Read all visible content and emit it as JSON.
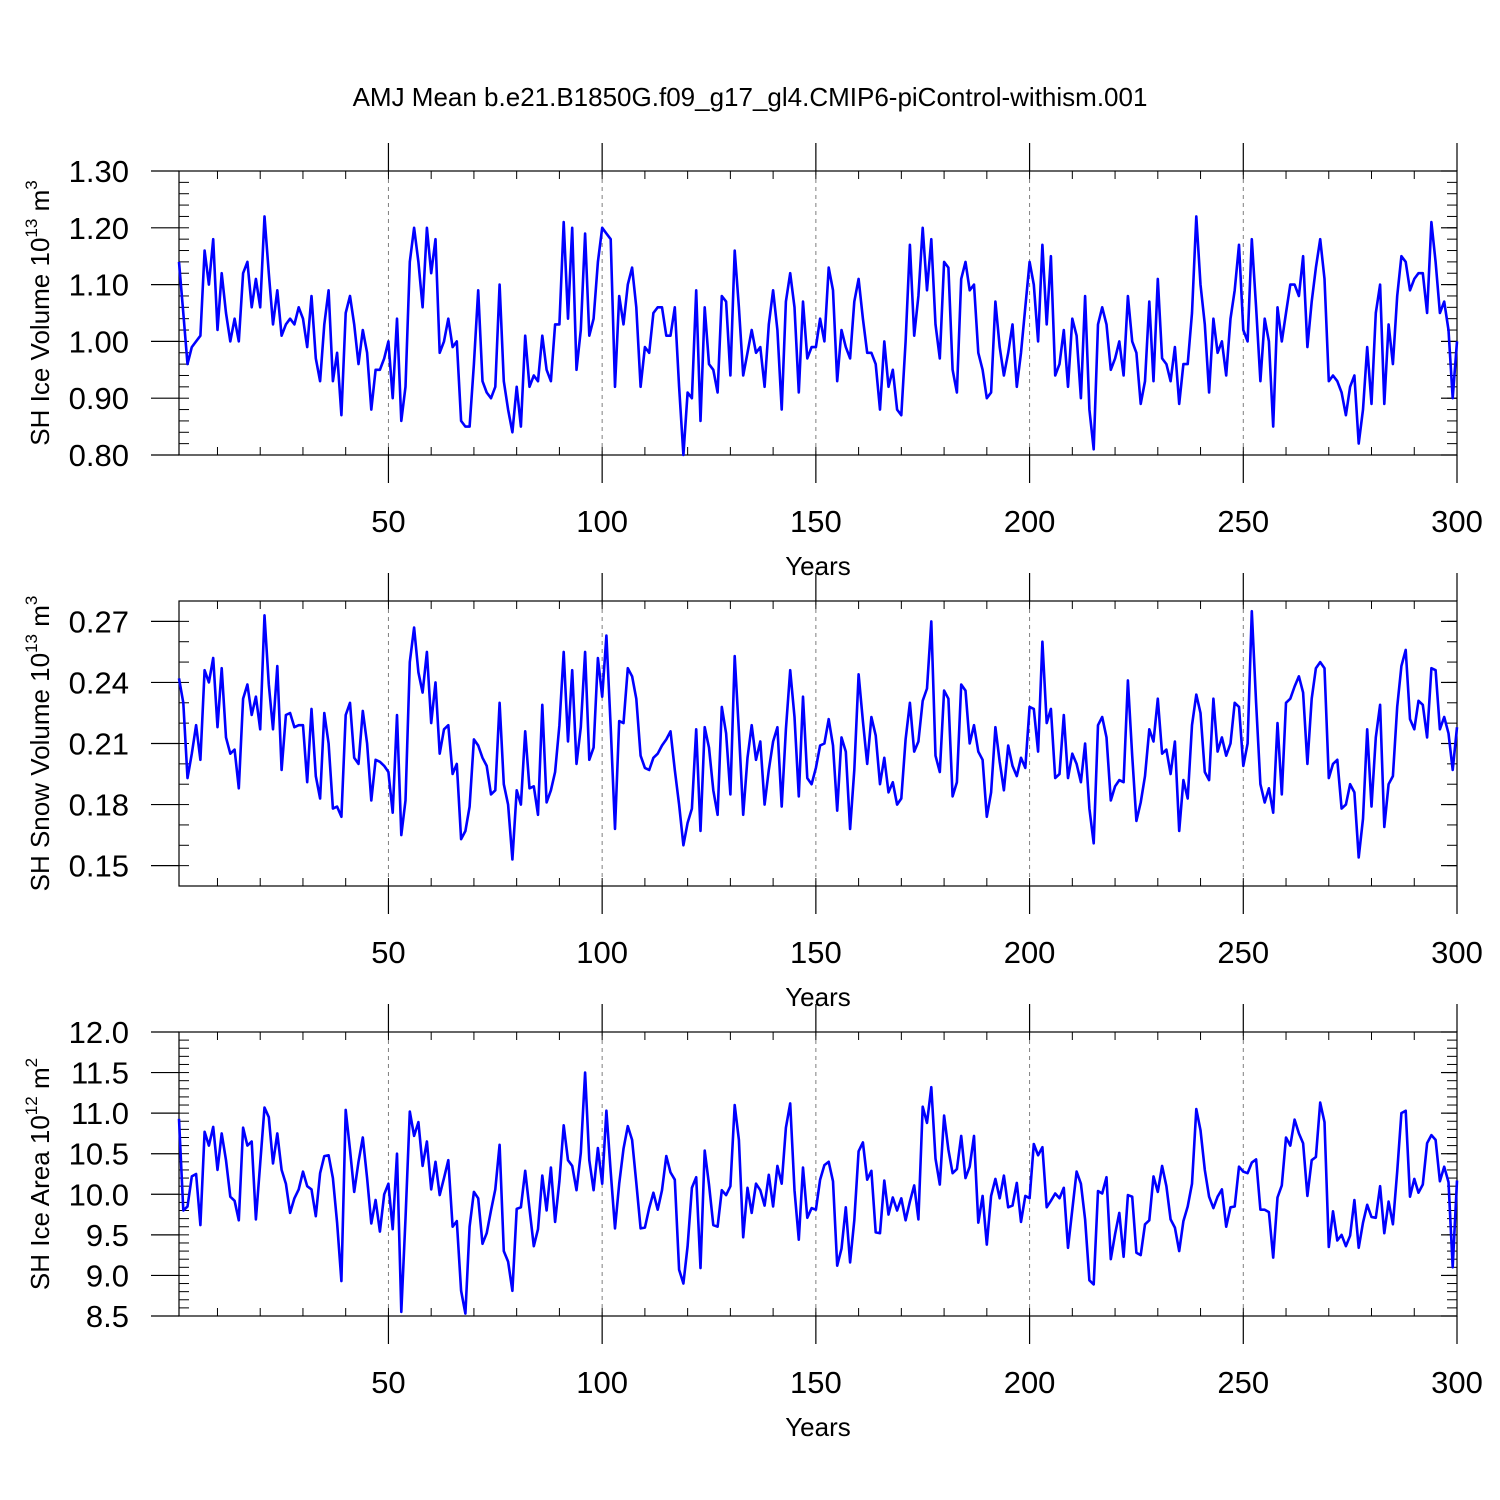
{
  "title": "AMJ Mean b.e21.B1850G.f09_g17_gl4.CMIP6-piControl-withism.001",
  "colors": {
    "series": "#0000ff",
    "axis": "#000000",
    "grid": "#7f7f7f"
  },
  "chart_data": [
    {
      "type": "line",
      "xlabel": "Years",
      "ylabel_main": "SH Ice Volume 10",
      "ylabel_sup": "13",
      "ylabel_unit": " m",
      "ylabel_unit_sup": "3",
      "xlim": [
        1,
        300
      ],
      "ylim": [
        0.8,
        1.3
      ],
      "xticks": [
        50,
        100,
        150,
        200,
        250,
        300
      ],
      "yticks": [
        "0.80",
        "0.90",
        "1.00",
        "1.10",
        "1.20",
        "1.30"
      ],
      "ytick_values": [
        0.8,
        0.9,
        1.0,
        1.1,
        1.2,
        1.3
      ],
      "yminor_step": 0.02,
      "grid": "vertical dashed at major x ticks",
      "series": [
        {
          "x_start": 1,
          "x_step": 1,
          "values": [
            1.14,
            1.05,
            0.96,
            0.99,
            1.0,
            1.01,
            1.16,
            1.1,
            1.18,
            1.02,
            1.12,
            1.05,
            1.0,
            1.04,
            1.0,
            1.12,
            1.14,
            1.06,
            1.11,
            1.06,
            1.22,
            1.12,
            1.03,
            1.09,
            1.01,
            1.03,
            1.04,
            1.03,
            1.06,
            1.04,
            0.99,
            1.08,
            0.97,
            0.93,
            1.03,
            1.09,
            0.93,
            0.98,
            0.87,
            1.05,
            1.08,
            1.03,
            0.96,
            1.02,
            0.98,
            0.88,
            0.95,
            0.95,
            0.97,
            1.0,
            0.9,
            1.04,
            0.86,
            0.92,
            1.14,
            1.2,
            1.14,
            1.06,
            1.2,
            1.12,
            1.18,
            0.98,
            1.0,
            1.04,
            0.99,
            1.0,
            0.86,
            0.85,
            0.85,
            0.96,
            1.09,
            0.93,
            0.91,
            0.9,
            0.92,
            1.1,
            0.93,
            0.88,
            0.84,
            0.92,
            0.85,
            1.01,
            0.92,
            0.94,
            0.93,
            1.01,
            0.95,
            0.93,
            1.03,
            1.03,
            1.21,
            1.04,
            1.2,
            0.95,
            1.02,
            1.19,
            1.01,
            1.04,
            1.14,
            1.2,
            1.19,
            1.18,
            0.92,
            1.08,
            1.03,
            1.1,
            1.13,
            1.06,
            0.92,
            0.99,
            0.98,
            1.05,
            1.06,
            1.06,
            1.01,
            1.01,
            1.06,
            0.92,
            0.8,
            0.91,
            0.9,
            1.09,
            0.86,
            1.06,
            0.96,
            0.95,
            0.91,
            1.08,
            1.07,
            0.94,
            1.16,
            1.06,
            0.94,
            0.98,
            1.02,
            0.98,
            0.99,
            0.92,
            1.03,
            1.09,
            1.02,
            0.88,
            1.07,
            1.12,
            1.06,
            0.91,
            1.07,
            0.97,
            0.99,
            0.99,
            1.04,
            1.0,
            1.13,
            1.09,
            0.93,
            1.02,
            0.99,
            0.97,
            1.07,
            1.11,
            1.04,
            0.98,
            0.98,
            0.96,
            0.88,
            1.0,
            0.92,
            0.95,
            0.88,
            0.87,
            1.0,
            1.17,
            1.01,
            1.08,
            1.2,
            1.09,
            1.18,
            1.03,
            0.97,
            1.14,
            1.13,
            0.95,
            0.91,
            1.11,
            1.14,
            1.09,
            1.1,
            0.98,
            0.95,
            0.9,
            0.91,
            1.07,
            0.99,
            0.94,
            0.98,
            1.03,
            0.92,
            0.98,
            1.06,
            1.14,
            1.1,
            1.0,
            1.17,
            1.03,
            1.15,
            0.94,
            0.96,
            1.02,
            0.92,
            1.04,
            1.01,
            0.9,
            1.08,
            0.88,
            0.81,
            1.03,
            1.06,
            1.03,
            0.95,
            0.97,
            1.0,
            0.94,
            1.08,
            1.0,
            0.98,
            0.89,
            0.93,
            1.07,
            0.93,
            1.11,
            0.97,
            0.96,
            0.93,
            0.99,
            0.89,
            0.96,
            0.96,
            1.05,
            1.22,
            1.1,
            1.03,
            0.91,
            1.04,
            0.98,
            1.0,
            0.94,
            1.04,
            1.09,
            1.17,
            1.02,
            1.0,
            1.18,
            1.06,
            0.93,
            1.04,
            1.0,
            0.85,
            1.06,
            1.0,
            1.05,
            1.1,
            1.1,
            1.08,
            1.15,
            0.99,
            1.07,
            1.13,
            1.18,
            1.11,
            0.93,
            0.94,
            0.93,
            0.91,
            0.87,
            0.92,
            0.94,
            0.82,
            0.88,
            0.99,
            0.89,
            1.05,
            1.1,
            0.89,
            1.03,
            0.96,
            1.08,
            1.15,
            1.14,
            1.09,
            1.11,
            1.12,
            1.12,
            1.05,
            1.21,
            1.14,
            1.05,
            1.07,
            1.02,
            0.9,
            1.0
          ]
        }
      ]
    },
    {
      "type": "line",
      "xlabel": "Years",
      "ylabel_main": "SH Snow Volume 10",
      "ylabel_sup": "13",
      "ylabel_unit": " m",
      "ylabel_unit_sup": "3",
      "xlim": [
        1,
        300
      ],
      "ylim": [
        0.14,
        0.28
      ],
      "xticks": [
        50,
        100,
        150,
        200,
        250,
        300
      ],
      "yticks": [
        "0.15",
        "0.18",
        "0.21",
        "0.24",
        "0.27"
      ],
      "ytick_values": [
        0.15,
        0.18,
        0.21,
        0.24,
        0.27
      ],
      "yminor_step": 0.01,
      "grid": "vertical dashed at major x ticks",
      "series": [
        {
          "x_start": 1,
          "x_step": 1,
          "values": [
            0.242,
            0.23,
            0.193,
            0.205,
            0.219,
            0.202,
            0.246,
            0.24,
            0.252,
            0.218,
            0.247,
            0.213,
            0.205,
            0.207,
            0.188,
            0.232,
            0.239,
            0.224,
            0.233,
            0.217,
            0.273,
            0.239,
            0.217,
            0.248,
            0.197,
            0.224,
            0.225,
            0.218,
            0.219,
            0.219,
            0.191,
            0.227,
            0.194,
            0.183,
            0.225,
            0.21,
            0.178,
            0.179,
            0.174,
            0.224,
            0.23,
            0.203,
            0.2,
            0.226,
            0.21,
            0.182,
            0.202,
            0.201,
            0.199,
            0.196,
            0.176,
            0.224,
            0.165,
            0.182,
            0.25,
            0.267,
            0.245,
            0.235,
            0.255,
            0.22,
            0.24,
            0.205,
            0.217,
            0.219,
            0.195,
            0.2,
            0.163,
            0.167,
            0.179,
            0.212,
            0.209,
            0.203,
            0.199,
            0.185,
            0.187,
            0.23,
            0.19,
            0.18,
            0.153,
            0.187,
            0.18,
            0.216,
            0.188,
            0.189,
            0.175,
            0.229,
            0.181,
            0.187,
            0.196,
            0.219,
            0.255,
            0.211,
            0.246,
            0.2,
            0.218,
            0.255,
            0.202,
            0.208,
            0.252,
            0.233,
            0.263,
            0.218,
            0.168,
            0.221,
            0.22,
            0.247,
            0.243,
            0.232,
            0.204,
            0.198,
            0.197,
            0.203,
            0.205,
            0.209,
            0.212,
            0.216,
            0.197,
            0.18,
            0.16,
            0.171,
            0.178,
            0.217,
            0.167,
            0.218,
            0.208,
            0.187,
            0.175,
            0.228,
            0.215,
            0.185,
            0.253,
            0.216,
            0.175,
            0.203,
            0.219,
            0.202,
            0.211,
            0.18,
            0.197,
            0.211,
            0.218,
            0.179,
            0.217,
            0.246,
            0.223,
            0.184,
            0.233,
            0.193,
            0.19,
            0.198,
            0.209,
            0.21,
            0.222,
            0.209,
            0.177,
            0.213,
            0.206,
            0.168,
            0.197,
            0.244,
            0.221,
            0.2,
            0.223,
            0.214,
            0.19,
            0.203,
            0.186,
            0.191,
            0.18,
            0.183,
            0.212,
            0.23,
            0.206,
            0.211,
            0.231,
            0.237,
            0.27,
            0.204,
            0.196,
            0.236,
            0.232,
            0.184,
            0.191,
            0.239,
            0.236,
            0.21,
            0.219,
            0.206,
            0.202,
            0.174,
            0.186,
            0.218,
            0.201,
            0.187,
            0.209,
            0.199,
            0.194,
            0.203,
            0.198,
            0.228,
            0.227,
            0.206,
            0.26,
            0.22,
            0.227,
            0.193,
            0.195,
            0.224,
            0.193,
            0.205,
            0.2,
            0.191,
            0.21,
            0.178,
            0.161,
            0.219,
            0.223,
            0.213,
            0.182,
            0.189,
            0.192,
            0.191,
            0.241,
            0.204,
            0.172,
            0.181,
            0.194,
            0.217,
            0.211,
            0.232,
            0.205,
            0.207,
            0.195,
            0.211,
            0.167,
            0.192,
            0.183,
            0.219,
            0.234,
            0.225,
            0.196,
            0.192,
            0.232,
            0.206,
            0.213,
            0.204,
            0.21,
            0.23,
            0.228,
            0.199,
            0.21,
            0.275,
            0.23,
            0.19,
            0.181,
            0.188,
            0.176,
            0.22,
            0.185,
            0.23,
            0.232,
            0.238,
            0.243,
            0.235,
            0.2,
            0.232,
            0.247,
            0.25,
            0.247,
            0.193,
            0.2,
            0.202,
            0.178,
            0.18,
            0.19,
            0.186,
            0.154,
            0.173,
            0.217,
            0.179,
            0.213,
            0.229,
            0.169,
            0.19,
            0.194,
            0.228,
            0.248,
            0.256,
            0.222,
            0.217,
            0.231,
            0.229,
            0.213,
            0.247,
            0.246,
            0.217,
            0.223,
            0.215,
            0.197,
            0.218
          ]
        }
      ]
    },
    {
      "type": "line",
      "xlabel": "Years",
      "ylabel_main": "SH Ice Area 10",
      "ylabel_sup": "12",
      "ylabel_unit": " m",
      "ylabel_unit_sup": "2",
      "xlim": [
        1,
        300
      ],
      "ylim": [
        8.5,
        12.0
      ],
      "xticks": [
        50,
        100,
        150,
        200,
        250,
        300
      ],
      "yticks": [
        "8.5",
        "9.0",
        "9.5",
        "10.0",
        "10.5",
        "11.0",
        "11.5",
        "12.0"
      ],
      "ytick_values": [
        8.5,
        9.0,
        9.5,
        10.0,
        10.5,
        11.0,
        11.5,
        12.0
      ],
      "yminor_step": 0.1,
      "grid": "vertical dashed at major x ticks",
      "series": [
        {
          "x_start": 1,
          "x_step": 1,
          "values": [
            10.93,
            9.8,
            9.85,
            10.22,
            10.25,
            9.62,
            10.77,
            10.6,
            10.83,
            10.3,
            10.75,
            10.42,
            9.97,
            9.92,
            9.68,
            10.82,
            10.6,
            10.65,
            9.69,
            10.38,
            11.07,
            10.95,
            10.38,
            10.75,
            10.3,
            10.13,
            9.77,
            9.95,
            10.06,
            10.28,
            10.1,
            10.06,
            9.73,
            10.26,
            10.47,
            10.48,
            10.2,
            9.65,
            8.93,
            11.04,
            10.55,
            10.03,
            10.4,
            10.7,
            10.2,
            9.64,
            9.93,
            9.54,
            10.0,
            10.13,
            9.57,
            10.5,
            8.55,
            9.7,
            11.02,
            10.72,
            10.89,
            10.35,
            10.65,
            10.06,
            10.4,
            9.99,
            10.2,
            10.42,
            9.6,
            9.67,
            8.81,
            8.53,
            9.6,
            10.03,
            9.95,
            9.39,
            9.52,
            9.8,
            10.06,
            10.61,
            9.3,
            9.17,
            8.81,
            9.82,
            9.84,
            10.29,
            9.82,
            9.36,
            9.57,
            10.23,
            9.8,
            10.33,
            9.66,
            10.16,
            10.85,
            10.42,
            10.35,
            10.05,
            10.51,
            11.5,
            10.42,
            10.05,
            10.57,
            10.13,
            11.03,
            10.28,
            9.58,
            10.13,
            10.56,
            10.84,
            10.67,
            10.14,
            9.58,
            9.59,
            9.83,
            10.02,
            9.81,
            10.05,
            10.47,
            10.27,
            10.18,
            9.07,
            8.9,
            9.36,
            10.08,
            10.21,
            9.09,
            10.54,
            10.12,
            9.62,
            9.6,
            10.05,
            9.99,
            10.1,
            11.1,
            10.67,
            9.47,
            10.08,
            9.77,
            10.13,
            10.05,
            9.86,
            10.24,
            9.85,
            10.35,
            10.13,
            10.82,
            11.12,
            10.05,
            9.44,
            10.33,
            9.71,
            9.83,
            9.81,
            10.18,
            10.36,
            10.4,
            10.16,
            9.12,
            9.33,
            9.84,
            9.16,
            9.68,
            10.53,
            10.64,
            10.18,
            10.29,
            9.53,
            9.52,
            10.17,
            9.75,
            9.96,
            9.8,
            9.95,
            9.68,
            9.91,
            10.11,
            9.69,
            11.08,
            10.88,
            11.32,
            10.44,
            10.12,
            10.97,
            10.55,
            10.26,
            10.31,
            10.72,
            10.2,
            10.34,
            10.72,
            9.65,
            9.98,
            9.38,
            9.98,
            10.19,
            9.95,
            10.23,
            9.84,
            9.86,
            10.14,
            9.66,
            9.98,
            9.95,
            10.62,
            10.48,
            10.58,
            9.84,
            9.92,
            10.01,
            9.95,
            10.08,
            9.34,
            9.81,
            10.28,
            10.13,
            9.69,
            8.94,
            8.89,
            10.04,
            10.01,
            10.21,
            9.2,
            9.51,
            9.77,
            9.23,
            9.99,
            9.97,
            9.28,
            9.25,
            9.63,
            9.68,
            10.22,
            10.03,
            10.35,
            10.1,
            9.69,
            9.59,
            9.3,
            9.67,
            9.85,
            10.13,
            11.05,
            10.79,
            10.3,
            9.97,
            9.83,
            9.97,
            10.06,
            9.6,
            9.84,
            9.85,
            10.34,
            10.28,
            10.26,
            10.39,
            10.43,
            9.81,
            9.81,
            9.78,
            9.22,
            9.96,
            10.11,
            10.7,
            10.6,
            10.92,
            10.75,
            10.63,
            9.98,
            10.42,
            10.46,
            11.13,
            10.89,
            9.35,
            9.79,
            9.43,
            9.5,
            9.36,
            9.49,
            9.93,
            9.34,
            9.65,
            9.87,
            9.72,
            9.71,
            10.1,
            9.52,
            9.91,
            9.63,
            10.28,
            11.0,
            11.03,
            9.97,
            10.19,
            10.02,
            10.12,
            10.63,
            10.73,
            10.67,
            10.16,
            10.34,
            10.15,
            9.1,
            10.17
          ]
        }
      ]
    }
  ]
}
